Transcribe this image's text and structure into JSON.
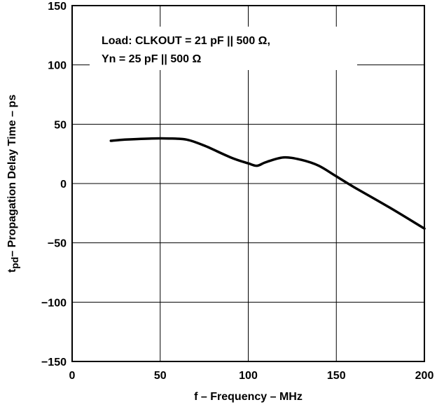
{
  "chart_data": {
    "type": "line",
    "xlabel": "f – Frequency – MHz",
    "ylabel_prefix": "t",
    "ylabel_sub": "pd",
    "ylabel_rest": "– Propagation Delay Time – ps",
    "xlim": [
      0,
      200
    ],
    "ylim": [
      -150,
      150
    ],
    "x_ticks": [
      0,
      50,
      100,
      150,
      200
    ],
    "x_tick_labels": [
      "0",
      "50",
      "100",
      "150",
      "200"
    ],
    "y_ticks": [
      150,
      100,
      50,
      0,
      -50,
      -100,
      -150
    ],
    "y_tick_labels": [
      "150",
      "100",
      "50",
      "0",
      "−50",
      "−100",
      "−150"
    ],
    "grid": true,
    "annotation": {
      "line1": "Load: CLKOUT = 21 pF || 500 Ω,",
      "line2": "Yn = 25 pF || 500 Ω"
    },
    "series": [
      {
        "x": [
          22,
          30,
          45,
          55,
          65,
          75,
          90,
          100,
          105,
          110,
          120,
          130,
          140,
          150,
          160,
          180,
          200
        ],
        "y": [
          36,
          37,
          38,
          38,
          37,
          32,
          22,
          17,
          15,
          18,
          22,
          20,
          15,
          6,
          -3,
          -20,
          -38
        ]
      }
    ]
  }
}
